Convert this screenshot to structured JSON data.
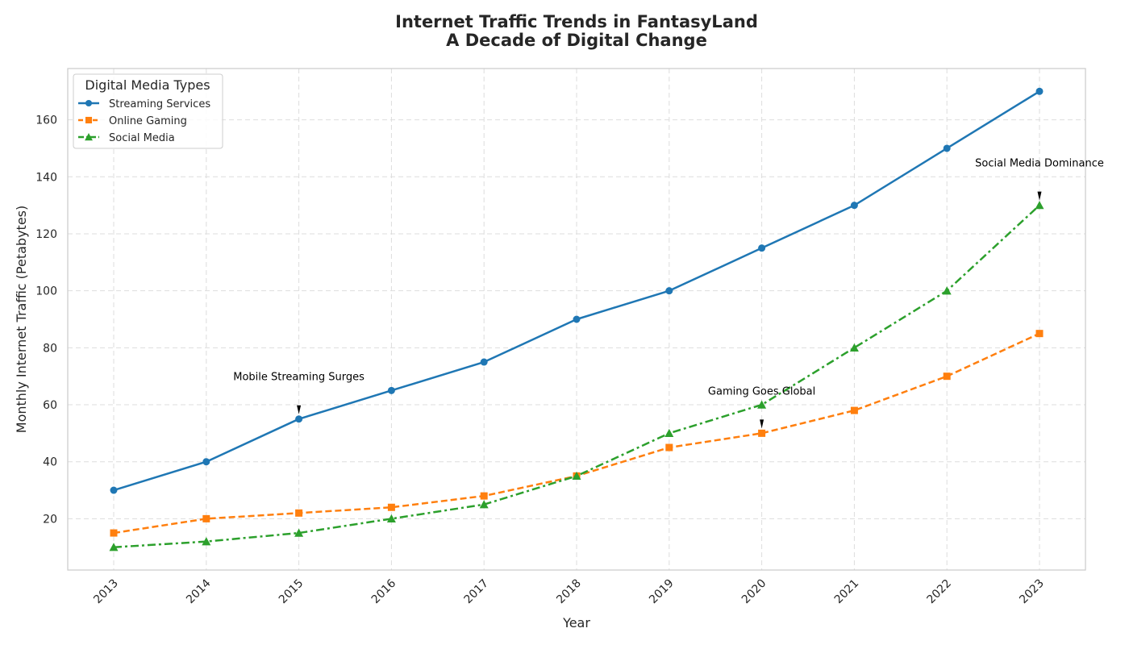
{
  "chart_data": {
    "type": "line",
    "title_lines": [
      "Internet Traffic Trends in FantasyLand",
      "A Decade of Digital Change"
    ],
    "xlabel": "Year",
    "ylabel": "Monthly Internet Traffic (Petabytes)",
    "x": [
      2013,
      2014,
      2015,
      2016,
      2017,
      2018,
      2019,
      2020,
      2021,
      2022,
      2023
    ],
    "x_tick_labels": [
      "2013",
      "2014",
      "2015",
      "2016",
      "2017",
      "2018",
      "2019",
      "2020",
      "2021",
      "2022",
      "2023"
    ],
    "y_ticks": [
      20,
      40,
      60,
      80,
      100,
      120,
      140,
      160
    ],
    "ylim": [
      2.0,
      178.0
    ],
    "grid": true,
    "legend": {
      "title": "Digital Media Types",
      "placement": "upper-left"
    },
    "series": [
      {
        "name": "Streaming Services",
        "values": [
          30,
          40,
          55,
          65,
          75,
          90,
          100,
          115,
          130,
          150,
          170
        ],
        "color": "#1f77b4",
        "line_style": "solid",
        "marker": "circle"
      },
      {
        "name": "Online Gaming",
        "values": [
          15,
          20,
          22,
          24,
          28,
          35,
          45,
          50,
          58,
          70,
          85
        ],
        "color": "#ff7f0e",
        "line_style": "dashed",
        "marker": "square"
      },
      {
        "name": "Social Media",
        "values": [
          10,
          12,
          15,
          20,
          25,
          35,
          50,
          60,
          80,
          100,
          130
        ],
        "color": "#2ca02c",
        "line_style": "dashdot",
        "marker": "triangle"
      }
    ],
    "annotations": [
      {
        "text": "Mobile Streaming Surges",
        "x": 2015,
        "y": 55,
        "text_y": 70
      },
      {
        "text": "Gaming Goes Global",
        "x": 2020,
        "y": 50,
        "text_y": 65
      },
      {
        "text": "Social Media Dominance",
        "x": 2023,
        "y": 130,
        "text_y": 145
      }
    ]
  }
}
